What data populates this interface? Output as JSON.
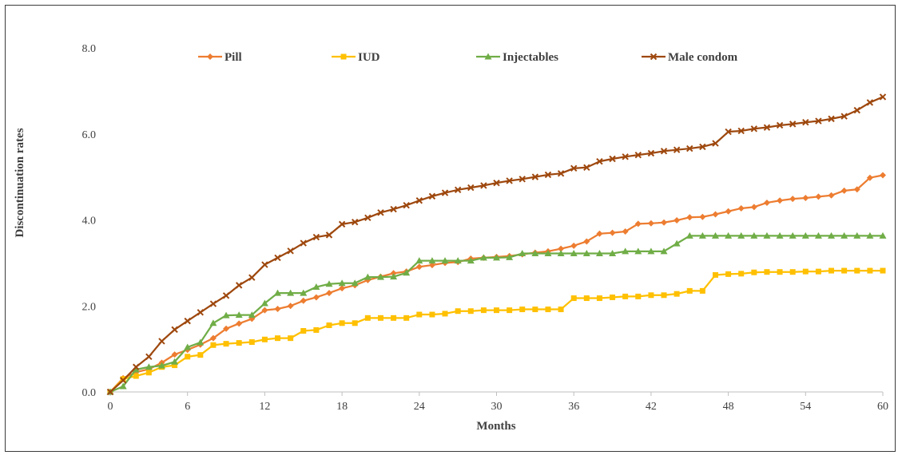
{
  "chart_data": {
    "type": "line",
    "xlabel": "Months",
    "ylabel": "Discontinuation rates",
    "xlim": [
      0,
      60
    ],
    "ylim": [
      0,
      8
    ],
    "x_ticks": [
      0,
      6,
      12,
      18,
      24,
      30,
      36,
      42,
      48,
      54,
      60
    ],
    "y_ticks": [
      "0.0",
      "2.0",
      "4.0",
      "6.0",
      "8.0"
    ],
    "grid": false,
    "legend_position": "top",
    "x": [
      0,
      1,
      2,
      3,
      4,
      5,
      6,
      7,
      8,
      9,
      10,
      11,
      12,
      13,
      14,
      15,
      16,
      17,
      18,
      19,
      20,
      21,
      22,
      23,
      24,
      25,
      26,
      27,
      28,
      29,
      30,
      31,
      32,
      33,
      34,
      35,
      36,
      37,
      38,
      39,
      40,
      41,
      42,
      43,
      44,
      45,
      46,
      47,
      48,
      49,
      50,
      51,
      52,
      53,
      54,
      55,
      56,
      57,
      58,
      59,
      60
    ],
    "series": [
      {
        "name": "Pill",
        "color": "#ED7D31",
        "marker": "diamond",
        "values": [
          0,
          0.32,
          0.46,
          0.53,
          0.68,
          0.87,
          0.98,
          1.1,
          1.25,
          1.47,
          1.59,
          1.7,
          1.9,
          1.93,
          2.0,
          2.12,
          2.2,
          2.3,
          2.41,
          2.48,
          2.6,
          2.68,
          2.76,
          2.8,
          2.91,
          2.95,
          3.0,
          3.02,
          3.1,
          3.12,
          3.14,
          3.16,
          3.2,
          3.24,
          3.27,
          3.33,
          3.4,
          3.5,
          3.68,
          3.7,
          3.73,
          3.91,
          3.92,
          3.94,
          3.99,
          4.06,
          4.07,
          4.13,
          4.2,
          4.27,
          4.3,
          4.4,
          4.45,
          4.49,
          4.51,
          4.54,
          4.57,
          4.68,
          4.71,
          4.98,
          5.04
        ]
      },
      {
        "name": "IUD",
        "color": "#FFC000",
        "marker": "square",
        "values": [
          0,
          0.3,
          0.37,
          0.45,
          0.58,
          0.62,
          0.82,
          0.86,
          1.09,
          1.12,
          1.14,
          1.16,
          1.22,
          1.25,
          1.25,
          1.42,
          1.44,
          1.55,
          1.6,
          1.6,
          1.72,
          1.72,
          1.72,
          1.72,
          1.8,
          1.8,
          1.82,
          1.88,
          1.88,
          1.9,
          1.9,
          1.9,
          1.92,
          1.92,
          1.92,
          1.92,
          2.18,
          2.18,
          2.18,
          2.2,
          2.22,
          2.22,
          2.25,
          2.25,
          2.28,
          2.35,
          2.35,
          2.72,
          2.74,
          2.75,
          2.78,
          2.79,
          2.79,
          2.79,
          2.8,
          2.8,
          2.82,
          2.82,
          2.82,
          2.82,
          2.82
        ]
      },
      {
        "name": "Injectables",
        "color": "#70AD47",
        "marker": "triangle",
        "values": [
          0,
          0.13,
          0.52,
          0.58,
          0.61,
          0.7,
          1.04,
          1.15,
          1.6,
          1.78,
          1.79,
          1.79,
          2.06,
          2.3,
          2.3,
          2.3,
          2.44,
          2.51,
          2.53,
          2.53,
          2.67,
          2.67,
          2.68,
          2.77,
          3.05,
          3.05,
          3.05,
          3.05,
          3.05,
          3.12,
          3.12,
          3.13,
          3.22,
          3.22,
          3.22,
          3.22,
          3.22,
          3.22,
          3.22,
          3.22,
          3.27,
          3.27,
          3.27,
          3.27,
          3.45,
          3.63,
          3.63,
          3.63,
          3.63,
          3.63,
          3.63,
          3.63,
          3.63,
          3.63,
          3.63,
          3.63,
          3.63,
          3.63,
          3.63,
          3.63,
          3.63
        ]
      },
      {
        "name": "Male condom",
        "color": "#9E480E",
        "marker": "x",
        "values": [
          0,
          0.27,
          0.58,
          0.82,
          1.18,
          1.45,
          1.65,
          1.85,
          2.05,
          2.24,
          2.48,
          2.66,
          2.96,
          3.12,
          3.28,
          3.46,
          3.6,
          3.65,
          3.9,
          3.95,
          4.05,
          4.17,
          4.25,
          4.34,
          4.45,
          4.55,
          4.63,
          4.7,
          4.75,
          4.8,
          4.86,
          4.91,
          4.95,
          5.0,
          5.05,
          5.08,
          5.2,
          5.22,
          5.36,
          5.42,
          5.47,
          5.51,
          5.55,
          5.6,
          5.63,
          5.66,
          5.7,
          5.78,
          6.05,
          6.07,
          6.12,
          6.15,
          6.2,
          6.23,
          6.27,
          6.3,
          6.35,
          6.41,
          6.55,
          6.73,
          6.86
        ]
      }
    ]
  }
}
